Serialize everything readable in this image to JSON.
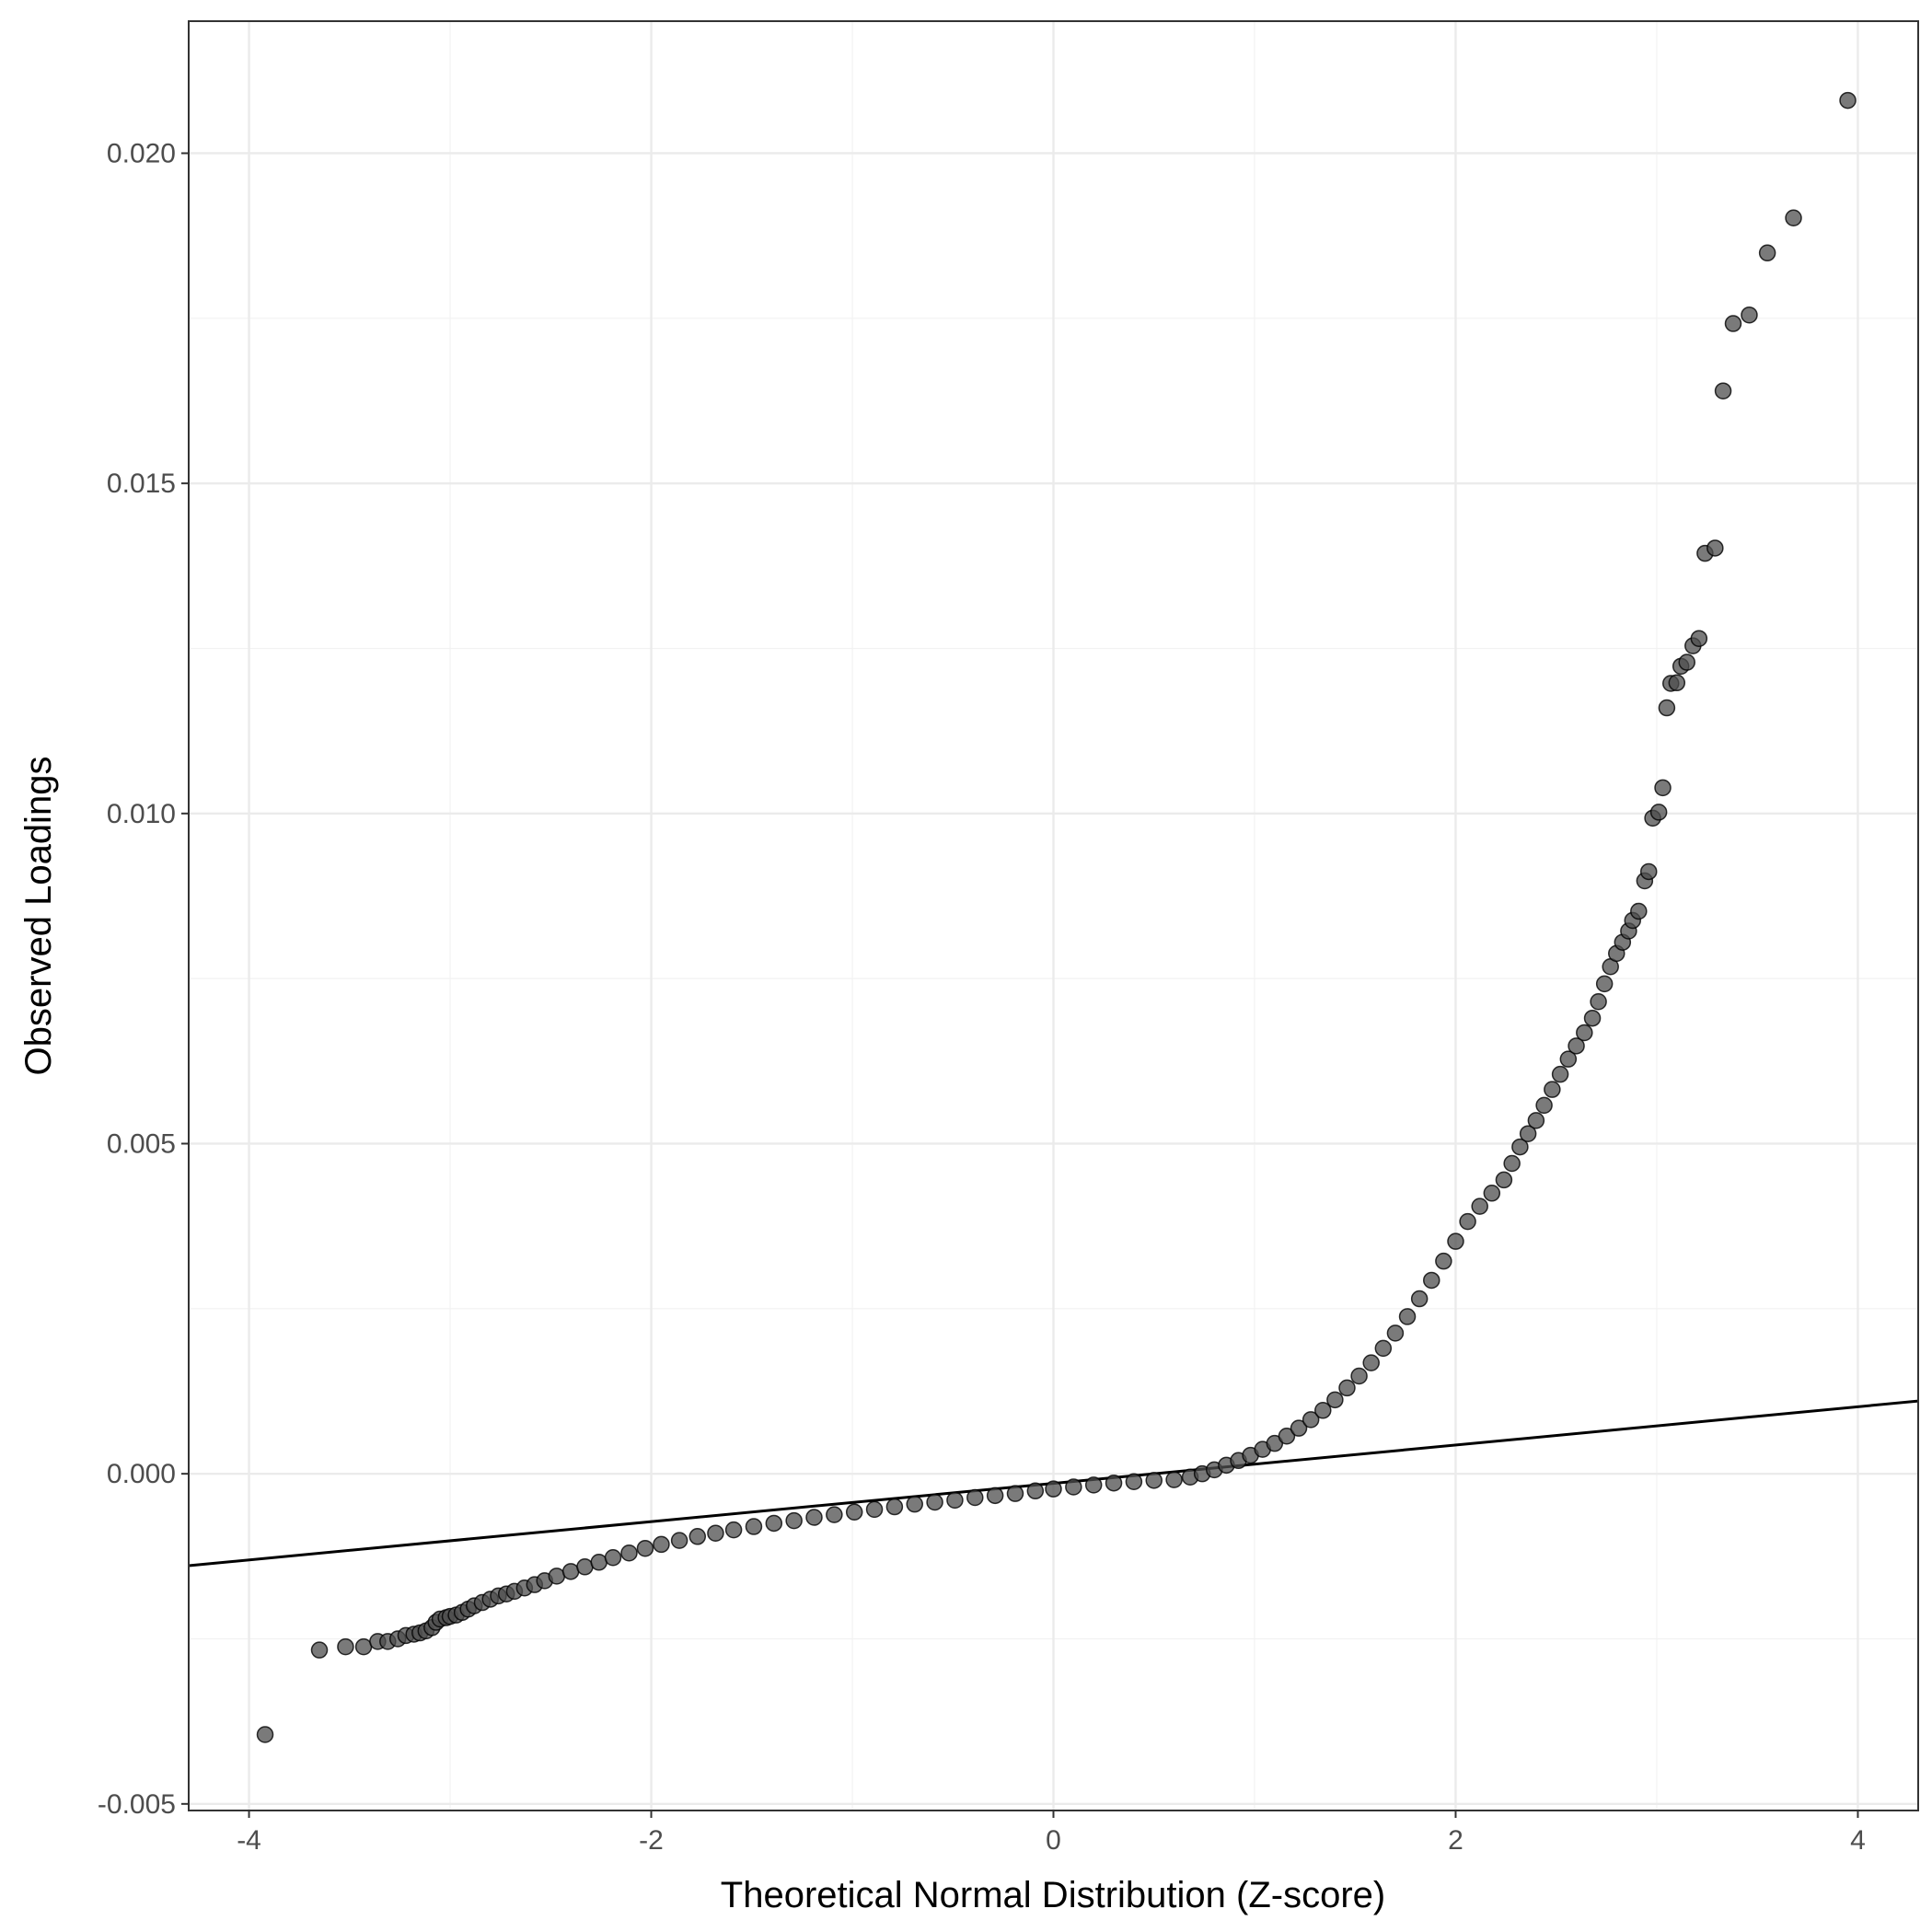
{
  "chart_data": {
    "type": "scatter",
    "title": "",
    "xlabel": "Theoretical Normal Distribution (Z-score)",
    "ylabel": "Observed Loadings",
    "xlim": [
      -4.3,
      4.3
    ],
    "ylim": [
      -0.0051,
      0.022
    ],
    "x_ticks": [
      -4,
      -2,
      0,
      2,
      4
    ],
    "x_tick_labels": [
      "-4",
      "-2",
      "0",
      "2",
      "4"
    ],
    "y_ticks": [
      -0.005,
      0.0,
      0.005,
      0.01,
      0.015,
      0.02
    ],
    "y_tick_labels": [
      "-0.005",
      "0.000",
      "0.005",
      "0.010",
      "0.015",
      "0.020"
    ],
    "grid": true,
    "theme": "bw",
    "point_color": "#4d4d4d",
    "line_color": "#000000",
    "reference_line": {
      "slope": 0.00029,
      "intercept": -0.000145
    },
    "series": [
      {
        "type": "scatter",
        "points": [
          [
            -3.92,
            -0.00395
          ],
          [
            -3.65,
            -0.00267
          ],
          [
            -3.52,
            -0.00262
          ],
          [
            -3.43,
            -0.00262
          ],
          [
            -3.36,
            -0.00254
          ],
          [
            -3.31,
            -0.00254
          ],
          [
            -3.26,
            -0.0025
          ],
          [
            -3.22,
            -0.00245
          ],
          [
            -3.18,
            -0.00243
          ],
          [
            -3.15,
            -0.00241
          ],
          [
            -3.12,
            -0.00238
          ],
          [
            -3.09,
            -0.00233
          ],
          [
            -3.07,
            -0.00225
          ],
          [
            -3.05,
            -0.0022
          ],
          [
            -3.02,
            -0.00218
          ],
          [
            -3.0,
            -0.00216
          ],
          [
            -2.97,
            -0.00214
          ],
          [
            -2.94,
            -0.0021
          ],
          [
            -2.91,
            -0.00205
          ],
          [
            -2.88,
            -0.002
          ],
          [
            -2.84,
            -0.00195
          ],
          [
            -2.8,
            -0.0019
          ],
          [
            -2.76,
            -0.00185
          ],
          [
            -2.72,
            -0.00182
          ],
          [
            -2.68,
            -0.00178
          ],
          [
            -2.63,
            -0.00173
          ],
          [
            -2.58,
            -0.00168
          ],
          [
            -2.53,
            -0.00162
          ],
          [
            -2.47,
            -0.00155
          ],
          [
            -2.4,
            -0.00148
          ],
          [
            -2.33,
            -0.00141
          ],
          [
            -2.26,
            -0.00134
          ],
          [
            -2.19,
            -0.00127
          ],
          [
            -2.11,
            -0.0012
          ],
          [
            -2.03,
            -0.00113
          ],
          [
            -1.95,
            -0.00107
          ],
          [
            -1.86,
            -0.00101
          ],
          [
            -1.77,
            -0.00095
          ],
          [
            -1.68,
            -0.0009
          ],
          [
            -1.59,
            -0.00085
          ],
          [
            -1.49,
            -0.0008
          ],
          [
            -1.39,
            -0.00075
          ],
          [
            -1.29,
            -0.00071
          ],
          [
            -1.19,
            -0.00066
          ],
          [
            -1.09,
            -0.00062
          ],
          [
            -0.99,
            -0.00058
          ],
          [
            -0.89,
            -0.00054
          ],
          [
            -0.79,
            -0.0005
          ],
          [
            -0.69,
            -0.00046
          ],
          [
            -0.59,
            -0.00043
          ],
          [
            -0.49,
            -0.0004
          ],
          [
            -0.39,
            -0.00036
          ],
          [
            -0.29,
            -0.00033
          ],
          [
            -0.19,
            -0.0003
          ],
          [
            -0.09,
            -0.00026
          ],
          [
            0.0,
            -0.00023
          ],
          [
            0.1,
            -0.0002
          ],
          [
            0.2,
            -0.00017
          ],
          [
            0.3,
            -0.00014
          ],
          [
            0.4,
            -0.00012
          ],
          [
            0.5,
            -0.0001
          ],
          [
            0.6,
            -9e-05
          ],
          [
            0.68,
            -5e-05
          ],
          [
            0.74,
            0.0
          ],
          [
            0.8,
            6e-05
          ],
          [
            0.86,
            0.00013
          ],
          [
            0.92,
            0.0002
          ],
          [
            0.98,
            0.00028
          ],
          [
            1.04,
            0.00037
          ],
          [
            1.1,
            0.00046
          ],
          [
            1.16,
            0.00057
          ],
          [
            1.22,
            0.00069
          ],
          [
            1.28,
            0.00082
          ],
          [
            1.34,
            0.00096
          ],
          [
            1.4,
            0.00112
          ],
          [
            1.46,
            0.0013
          ],
          [
            1.52,
            0.00148
          ],
          [
            1.58,
            0.00168
          ],
          [
            1.64,
            0.0019
          ],
          [
            1.7,
            0.00213
          ],
          [
            1.76,
            0.00238
          ],
          [
            1.82,
            0.00265
          ],
          [
            1.88,
            0.00293
          ],
          [
            1.94,
            0.00322
          ],
          [
            2.0,
            0.00352
          ],
          [
            2.06,
            0.00382
          ],
          [
            2.12,
            0.00405
          ],
          [
            2.18,
            0.00425
          ],
          [
            2.24,
            0.00445
          ],
          [
            2.28,
            0.0047
          ],
          [
            2.32,
            0.00495
          ],
          [
            2.36,
            0.00515
          ],
          [
            2.4,
            0.00535
          ],
          [
            2.44,
            0.00558
          ],
          [
            2.48,
            0.00582
          ],
          [
            2.52,
            0.00605
          ],
          [
            2.56,
            0.00628
          ],
          [
            2.6,
            0.00648
          ],
          [
            2.64,
            0.00668
          ],
          [
            2.68,
            0.0069
          ],
          [
            2.71,
            0.00715
          ],
          [
            2.74,
            0.00742
          ],
          [
            2.77,
            0.00768
          ],
          [
            2.8,
            0.00788
          ],
          [
            2.83,
            0.00805
          ],
          [
            2.86,
            0.00822
          ],
          [
            2.88,
            0.00838
          ],
          [
            2.91,
            0.00852
          ],
          [
            2.94,
            0.00898
          ],
          [
            2.96,
            0.00912
          ],
          [
            2.98,
            0.00993
          ],
          [
            3.01,
            0.01002
          ],
          [
            3.03,
            0.01039
          ],
          [
            3.05,
            0.0116
          ],
          [
            3.07,
            0.01197
          ],
          [
            3.1,
            0.01198
          ],
          [
            3.12,
            0.01223
          ],
          [
            3.15,
            0.01229
          ],
          [
            3.18,
            0.01254
          ],
          [
            3.21,
            0.01265
          ],
          [
            3.24,
            0.01394
          ],
          [
            3.29,
            0.01402
          ],
          [
            3.33,
            0.0164
          ],
          [
            3.38,
            0.01742
          ],
          [
            3.46,
            0.01755
          ],
          [
            3.55,
            0.01849
          ],
          [
            3.68,
            0.01902
          ],
          [
            3.95,
            0.0208
          ]
        ]
      }
    ]
  }
}
